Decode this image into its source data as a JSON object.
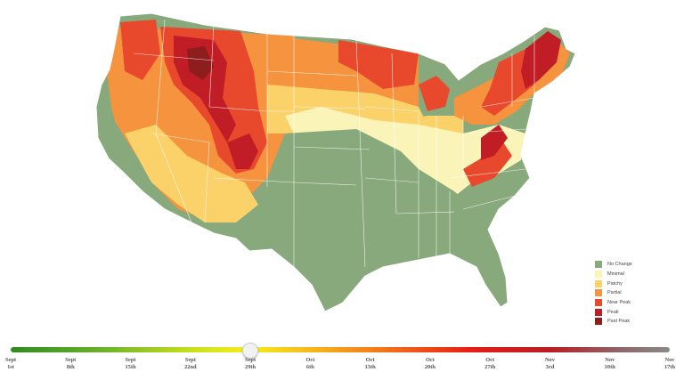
{
  "colors": {
    "no_change": "#87a97b",
    "minimal": "#fbf4b9",
    "patchy": "#fbd26a",
    "partial": "#f6933f",
    "near_peak": "#e8482b",
    "peak": "#c11d26",
    "past_peak": "#8e1d1d"
  },
  "legend": [
    {
      "label": "No Change",
      "color": "#87a97b"
    },
    {
      "label": "Minimal",
      "color": "#fbf4b9"
    },
    {
      "label": "Patchy",
      "color": "#fbd26a"
    },
    {
      "label": "Partial",
      "color": "#f6933f"
    },
    {
      "label": "Near Peak",
      "color": "#e8482b"
    },
    {
      "label": "Peak",
      "color": "#c11d26"
    },
    {
      "label": "Past Peak",
      "color": "#8e1d1d"
    }
  ],
  "timeline": {
    "ticks": [
      {
        "month": "Sept",
        "day": "1st"
      },
      {
        "month": "Sept",
        "day": "8th"
      },
      {
        "month": "Sept",
        "day": "15th"
      },
      {
        "month": "Sept",
        "day": "22nd"
      },
      {
        "month": "Sept",
        "day": "29th"
      },
      {
        "month": "Oct",
        "day": "6th"
      },
      {
        "month": "Oct",
        "day": "13th"
      },
      {
        "month": "Oct",
        "day": "20th"
      },
      {
        "month": "Oct",
        "day": "27th"
      },
      {
        "month": "Nov",
        "day": "3rd"
      },
      {
        "month": "Nov",
        "day": "10th"
      },
      {
        "month": "Nov",
        "day": "17th"
      }
    ],
    "selected_index": 4
  }
}
